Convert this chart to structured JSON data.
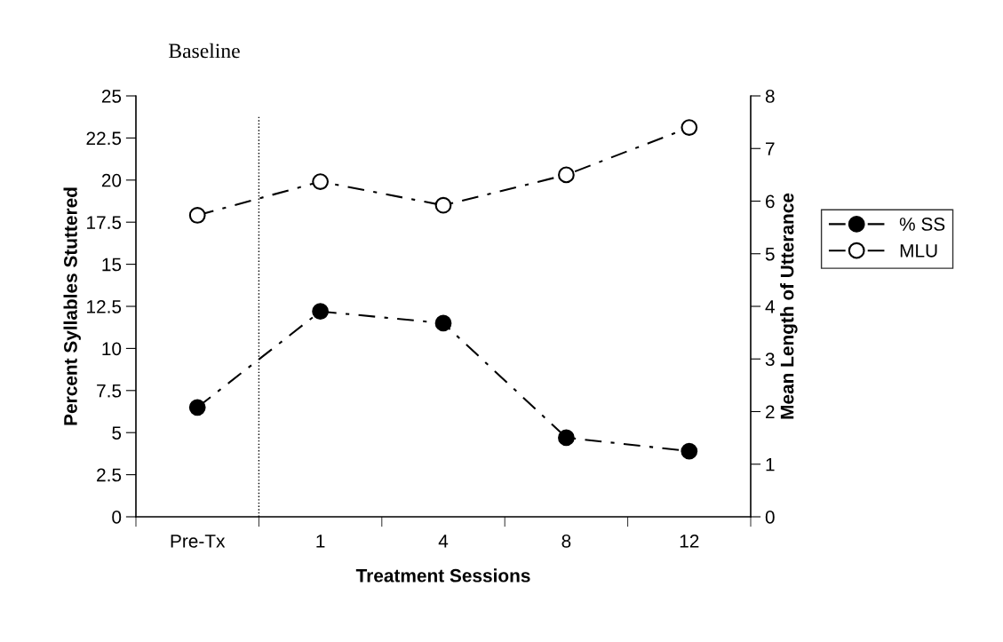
{
  "chart_data": {
    "type": "line",
    "xlabel": "Treatment Sessions",
    "ylabel": "Percent Syllables Stuttered",
    "y2label": "Mean Length of Utterance",
    "categories": [
      "Pre-Tx",
      "1",
      "4",
      "8",
      "12"
    ],
    "series": [
      {
        "name": "% SS",
        "color": "#000000",
        "values": [
          6.5,
          12.2,
          11.5,
          4.7,
          3.9
        ]
      },
      {
        "name": "MLU",
        "color": "#000000",
        "axis": "y2",
        "values": [
          5.73,
          6.37,
          5.92,
          6.5,
          7.4
        ]
      }
    ],
    "ylim": [
      0,
      25
    ],
    "yticks": [
      0,
      2.5,
      5,
      7.5,
      10,
      12.5,
      15,
      17.5,
      20,
      22.5,
      25
    ],
    "y2lim": [
      0,
      8
    ],
    "y2ticks": [
      0,
      1,
      2,
      3,
      4,
      5,
      6,
      7,
      8
    ],
    "annotations": [
      "Baseline"
    ],
    "marker": "circle",
    "line_style": "dashed",
    "legend": "right",
    "grid": false
  }
}
